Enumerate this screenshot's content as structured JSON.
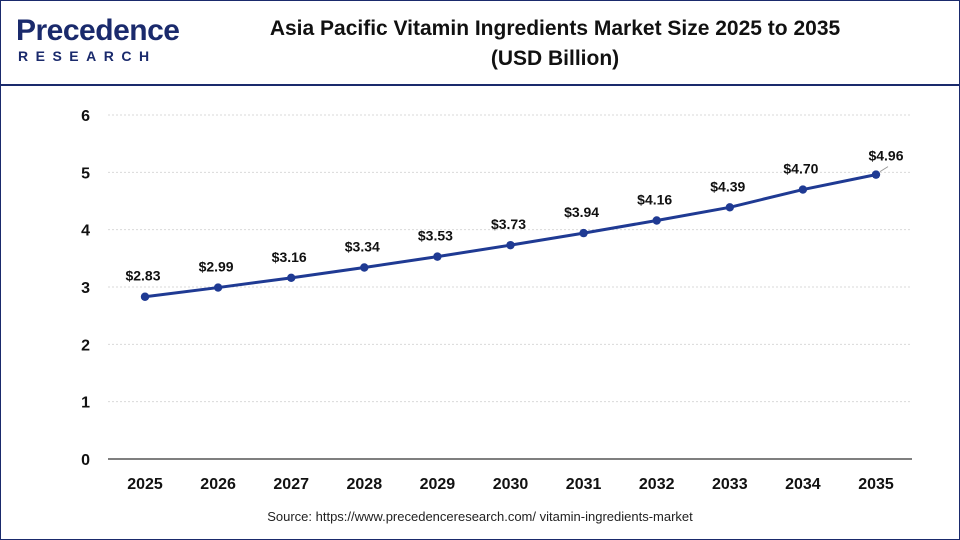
{
  "logo": {
    "main": "Precedence",
    "sub": "RESEARCH"
  },
  "chart_data": {
    "type": "line",
    "title": "Asia Pacific Vitamin Ingredients Market Size 2025 to 2035",
    "subtitle": "(USD Billion)",
    "xlabel": "",
    "ylabel": "",
    "categories": [
      "2025",
      "2026",
      "2027",
      "2028",
      "2029",
      "2030",
      "2031",
      "2032",
      "2033",
      "2034",
      "2035"
    ],
    "series": [
      {
        "values": [
          2.83,
          2.99,
          3.16,
          3.34,
          3.53,
          3.73,
          3.94,
          4.16,
          4.39,
          4.7,
          4.96
        ],
        "labels": [
          "$2.83",
          "$2.99",
          "$3.16",
          "$3.34",
          "$3.53",
          "$3.73",
          "$3.94",
          "$4.16",
          "$4.39",
          "$4.70",
          "$4.96"
        ],
        "color": "#1f3a93"
      }
    ],
    "ylim": [
      0,
      6
    ],
    "yticks": [
      "0",
      "1",
      "2",
      "3",
      "4",
      "5",
      "6"
    ],
    "grid": true,
    "legend": "none"
  },
  "source": "Source: https://www.precedenceresearch.com/ vitamin-ingredients-market"
}
